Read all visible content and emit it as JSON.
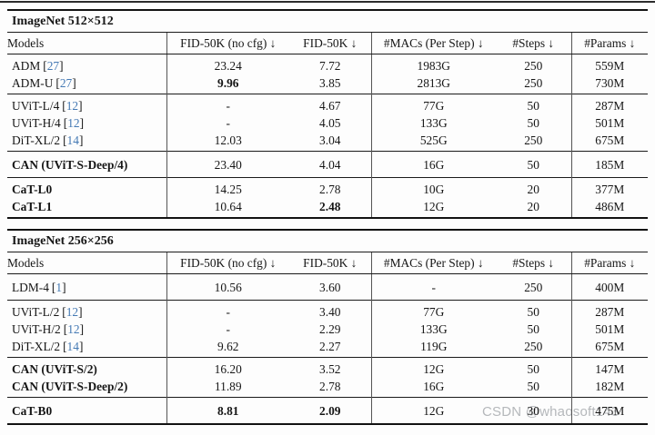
{
  "colors": {
    "citation_blue": "#4479b4",
    "watermark_gray": "#b5b8bb",
    "rule_black": "#121212"
  },
  "watermark": {
    "text": "CSDN @whaosoft143"
  },
  "punct": {
    "lb": "[",
    "rb": "]"
  },
  "columns": [
    "Models",
    "FID-50K (no cfg) ↓",
    "FID-50K ↓",
    "#MACs (Per Step) ↓",
    "#Steps ↓",
    "#Params ↓"
  ],
  "t512": {
    "title": "ImageNet 512×512",
    "groups": [
      {
        "rows": [
          {
            "model": "ADM",
            "ref": "27",
            "cells": [
              "23.24",
              "7.72",
              "1983G",
              "250",
              "559M"
            ]
          },
          {
            "model": "ADM-U",
            "ref": "27",
            "cells": [
              "9.96",
              "3.85",
              "2813G",
              "250",
              "730M"
            ]
          }
        ]
      },
      {
        "rows": [
          {
            "model": "UViT-L/4",
            "ref": "12",
            "cells": [
              "-",
              "4.67",
              "77G",
              "50",
              "287M"
            ]
          },
          {
            "model": "UViT-H/4",
            "ref": "12",
            "cells": [
              "-",
              "4.05",
              "133G",
              "50",
              "501M"
            ]
          },
          {
            "model": "DiT-XL/2",
            "ref": "14",
            "cells": [
              "12.03",
              "3.04",
              "525G",
              "250",
              "675M"
            ]
          }
        ]
      },
      {
        "rows": [
          {
            "model": "CAN (UViT-S-Deep/4)",
            "cells": [
              "23.40",
              "4.04",
              "16G",
              "50",
              "185M"
            ]
          }
        ]
      },
      {
        "rows": [
          {
            "model": "CaT-L0",
            "cells": [
              "14.25",
              "2.78",
              "10G",
              "20",
              "377M"
            ]
          },
          {
            "model": "CaT-L1",
            "cells": [
              "10.64",
              "2.48",
              "12G",
              "20",
              "486M"
            ]
          }
        ]
      }
    ]
  },
  "t256": {
    "title": "ImageNet 256×256",
    "groups": [
      {
        "rows": [
          {
            "model": "LDM-4",
            "ref": "1",
            "cells": [
              "10.56",
              "3.60",
              "-",
              "250",
              "400M"
            ]
          }
        ]
      },
      {
        "rows": [
          {
            "model": "UViT-L/2",
            "ref": "12",
            "cells": [
              "-",
              "3.40",
              "77G",
              "50",
              "287M"
            ]
          },
          {
            "model": "UViT-H/2",
            "ref": "12",
            "cells": [
              "-",
              "2.29",
              "133G",
              "50",
              "501M"
            ]
          },
          {
            "model": "DiT-XL/2",
            "ref": "14",
            "cells": [
              "9.62",
              "2.27",
              "119G",
              "250",
              "675M"
            ]
          }
        ]
      },
      {
        "rows": [
          {
            "model": "CAN (UViT-S/2)",
            "cells": [
              "16.20",
              "3.52",
              "12G",
              "50",
              "147M"
            ]
          },
          {
            "model": "CAN (UViT-S-Deep/2)",
            "cells": [
              "11.89",
              "2.78",
              "16G",
              "50",
              "182M"
            ]
          }
        ]
      },
      {
        "rows": [
          {
            "model": "CaT-B0",
            "cells": [
              "8.81",
              "2.09",
              "12G",
              "30",
              "475M"
            ]
          }
        ]
      }
    ]
  }
}
